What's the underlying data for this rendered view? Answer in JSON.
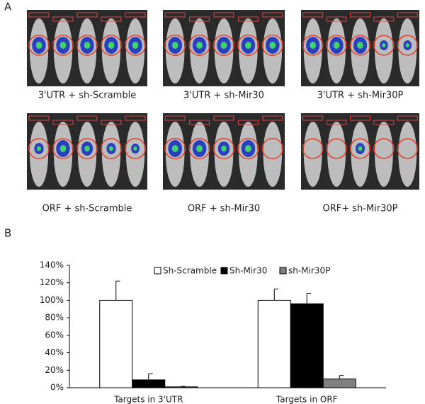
{
  "panel_a": {
    "label": "A",
    "captions": [
      "3'UTR + sh-Scramble",
      "3'UTR + sh-Mir30",
      "3'UTR + sh-Mir30P",
      "ORF + sh-Scramble",
      "ORF + sh-Mir30",
      "ORF+ sh-Mir30P"
    ]
  },
  "panel_b": {
    "label": "B"
  },
  "chart_data": {
    "type": "bar",
    "categories": [
      "Targets in 3'UTR",
      "Targets in ORF"
    ],
    "series": [
      {
        "name": "Sh-Scramble",
        "color": "#ffffff",
        "values": [
          100,
          100
        ],
        "errors": [
          22,
          13
        ]
      },
      {
        "name": "Sh-Mir30",
        "color": "#000000",
        "values": [
          9,
          96
        ],
        "errors": [
          7,
          12
        ]
      },
      {
        "name": "sh-Mir30P",
        "color": "#808080",
        "values": [
          1,
          10
        ],
        "errors": [
          0.5,
          4
        ]
      }
    ],
    "ylim": [
      0,
      140
    ],
    "yticks": [
      {
        "value": 0,
        "label": "0%"
      },
      {
        "value": 20,
        "label": "20%"
      },
      {
        "value": 40,
        "label": "40%"
      },
      {
        "value": 60,
        "label": "60%"
      },
      {
        "value": 80,
        "label": "80%"
      },
      {
        "value": 100,
        "label": "100%"
      },
      {
        "value": 120,
        "label": "120%"
      },
      {
        "value": 140,
        "label": "140%"
      }
    ],
    "legend": "top"
  }
}
